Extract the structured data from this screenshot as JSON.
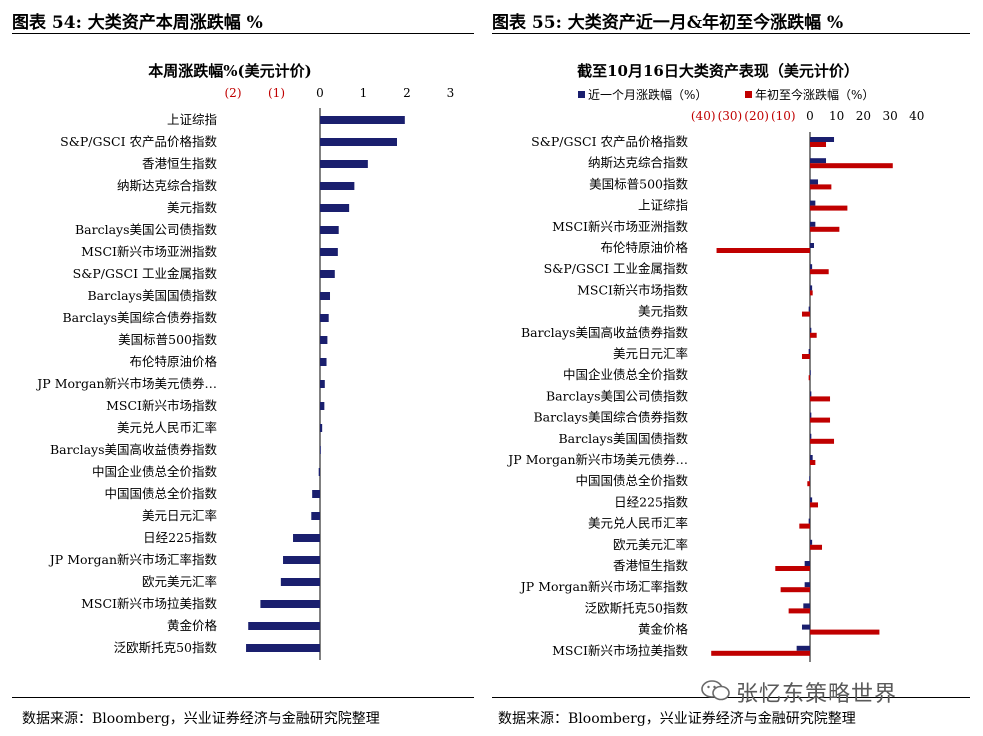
{
  "left_header": "图表 54:  大类资产本周涨跌幅  %",
  "right_header": "图表 55:  大类资产近一月&年初至今涨跌幅  %",
  "left_footer": "数据来源：Bloomberg，兴业证券经济与金融研究院整理",
  "right_footer": "数据来源：Bloomberg，兴业证券经济与金融研究院整理",
  "watermark": "张忆东策略世界",
  "colors": {
    "navy": "#1a1f6e",
    "red": "#c00000",
    "neg_tick": "#c00000"
  },
  "chart_data": [
    {
      "type": "bar",
      "orientation": "horizontal",
      "title": "本周涨跌幅%(美元计价)",
      "xlim": [
        -2,
        3
      ],
      "xticks": [
        -2,
        -1,
        0,
        1,
        2,
        3
      ],
      "xtick_labels": [
        "(2)",
        "(1)",
        "0",
        "1",
        "2",
        "3"
      ],
      "categories": [
        "上证综指",
        "S&P/GSCI 农产品价格指数",
        "香港恒生指数",
        "纳斯达克综合指数",
        "美元指数",
        "Barclays美国公司债指数",
        "MSCI新兴市场亚洲指数",
        "S&P/GSCI 工业金属指数",
        "Barclays美国国债指数",
        "Barclays美国综合债券指数",
        "美国标普500指数",
        "布伦特原油价格",
        "JP Morgan新兴市场美元债券…",
        "MSCI新兴市场指数",
        "美元兑人民币汇率",
        "Barclays美国高收益债券指数",
        "中国企业债总全价指数",
        "中国国债总全价指数",
        "美元日元汇率",
        "日经225指数",
        "JP Morgan新兴市场汇率指数",
        "欧元美元汇率",
        "MSCI新兴市场拉美指数",
        "黄金价格",
        "泛欧斯托克50指数"
      ],
      "values": [
        1.95,
        1.77,
        1.1,
        0.79,
        0.67,
        0.43,
        0.41,
        0.34,
        0.23,
        0.2,
        0.17,
        0.15,
        0.11,
        0.1,
        0.05,
        0.0,
        -0.03,
        -0.18,
        -0.2,
        -0.62,
        -0.85,
        -0.9,
        -1.37,
        -1.65,
        -1.7
      ]
    },
    {
      "type": "bar",
      "orientation": "horizontal",
      "title": "截至10月16日大类资产表现（美元计价）",
      "xlim": [
        -40,
        40
      ],
      "xticks": [
        -40,
        -30,
        -20,
        -10,
        0,
        10,
        20,
        30,
        40
      ],
      "xtick_labels": [
        "(40)",
        "(30)",
        "(20)",
        "(10)",
        "0",
        "10",
        "20",
        "30",
        "40"
      ],
      "legend": [
        "近一个月涨跌幅（%）",
        "年初至今涨跌幅（%）"
      ],
      "categories": [
        "S&P/GSCI 农产品价格指数",
        "纳斯达克综合指数",
        "美国标普500指数",
        "上证综指",
        "MSCI新兴市场亚洲指数",
        "布伦特原油价格",
        "S&P/GSCI 工业金属指数",
        "MSCI新兴市场指数",
        "美元指数",
        "Barclays美国高收益债券指数",
        "美元日元汇率",
        "中国企业债总全价指数",
        "Barclays美国公司债指数",
        "Barclays美国综合债券指数",
        "Barclays美国国债指数",
        "JP Morgan新兴市场美元债券…",
        "中国国债总全价指数",
        "日经225指数",
        "美元兑人民币汇率",
        "欧元美元汇率",
        "香港恒生指数",
        "JP Morgan新兴市场汇率指数",
        "泛欧斯托克50指数",
        "黄金价格",
        "MSCI新兴市场拉美指数"
      ],
      "series": [
        {
          "name": "近一个月涨跌幅（%）",
          "values": [
            9,
            6,
            3,
            2,
            2,
            1.5,
            0.8,
            0.8,
            -0.5,
            0.5,
            -0.5,
            0.2,
            0.5,
            0.5,
            0.5,
            1,
            -0.3,
            0.8,
            -0.5,
            0.8,
            -2,
            -2,
            -2.5,
            -3,
            -5
          ]
        },
        {
          "name": "年初至今涨跌幅（%）",
          "values": [
            6,
            31,
            8,
            14,
            11,
            -35,
            7,
            1,
            -3,
            2.5,
            -3,
            -0.5,
            7.5,
            7.5,
            9,
            2,
            -1,
            3,
            -4,
            4.5,
            -13,
            -11,
            -8,
            26,
            -37
          ]
        }
      ]
    }
  ]
}
